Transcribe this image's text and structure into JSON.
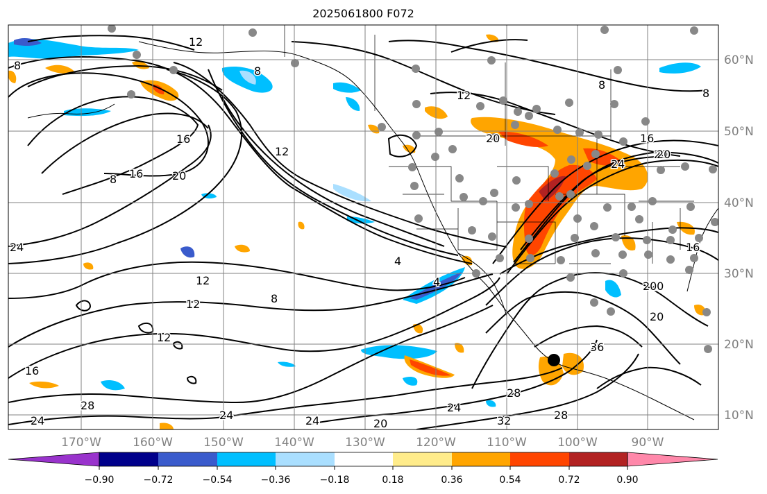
{
  "title": "2025061800 F072",
  "lat_labels": [
    "60°N",
    "50°N",
    "40°N",
    "30°N",
    "20°N",
    "10°N"
  ],
  "lon_labels": [
    "170°W",
    "160°W",
    "150°W",
    "140°W",
    "130°W",
    "120°W",
    "110°W",
    "100°W",
    "90°W"
  ],
  "contour_labels": [
    "8",
    "12",
    "8",
    "8",
    "12",
    "8",
    "16",
    "12",
    "20",
    "24",
    "16",
    "20",
    "16",
    "24",
    "20",
    "8",
    "12",
    "20",
    "4",
    "4",
    "8",
    "12",
    "12",
    "16",
    "24",
    "28",
    "24",
    "24",
    "20",
    "24",
    "28",
    "32",
    "28",
    "36",
    "20",
    "20",
    "16",
    "20"
  ],
  "colorbar": {
    "colors": [
      "#9933cc",
      "#00008b",
      "#3a5bcc",
      "#00bfff",
      "#aadfff",
      "#ffffff",
      "#ffec8b",
      "#ffa500",
      "#ff4500",
      "#b22222",
      "#ff88aa"
    ],
    "tick_labels": [
      "−0.90",
      "−0.72",
      "−0.54",
      "−0.36",
      "−0.18",
      "0.18",
      "0.36",
      "0.54",
      "0.72",
      "0.90"
    ]
  }
}
